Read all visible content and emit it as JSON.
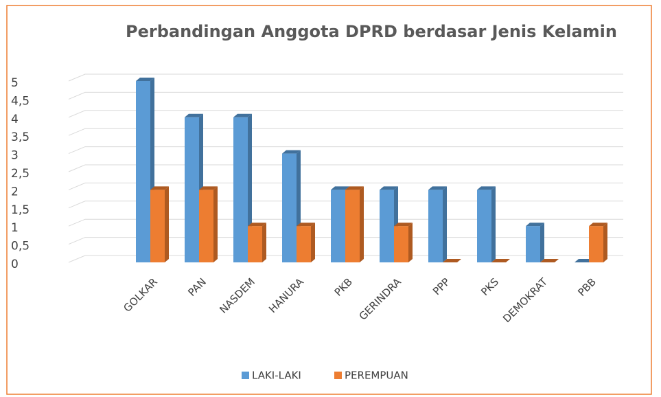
{
  "chart_data": {
    "type": "bar3d",
    "title": "Perbandingan Anggota DPRD berdasar Jenis Kelamin",
    "categories": [
      "GOLKAR",
      "PAN",
      "NASDEM",
      "HANURA",
      "PKB",
      "GERINDRA",
      "PPP",
      "PKS",
      "DEMOKRAT",
      "PBB"
    ],
    "series": [
      {
        "name": "LAKI-LAKI",
        "color": "#5b9bd5",
        "side_color": "#41719c",
        "values": [
          5,
          4,
          4,
          3,
          2,
          2,
          2,
          2,
          1,
          0
        ]
      },
      {
        "name": "PEREMPUAN",
        "color": "#ed7d31",
        "side_color": "#ae5a21",
        "values": [
          2,
          2,
          1,
          1,
          2,
          1,
          0,
          0,
          0,
          1
        ]
      }
    ],
    "ylim": [
      0,
      5
    ],
    "yticks": [
      0,
      {
        "value": 0.5,
        "label": "0,5"
      },
      1,
      {
        "value": 1.5,
        "label": "1,5"
      },
      2,
      {
        "value": 2.5,
        "label": "2,5"
      },
      3,
      {
        "value": 3.5,
        "label": "3,5"
      },
      4,
      {
        "value": 4.5,
        "label": "4,5"
      },
      5
    ],
    "grid": true,
    "legend": "bottom"
  }
}
